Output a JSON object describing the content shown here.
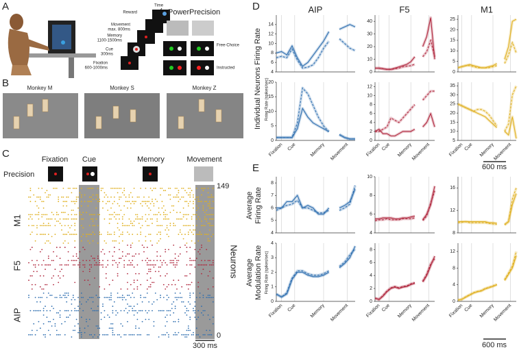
{
  "panels": {
    "a": {
      "letter": "A",
      "time": "Time",
      "reward": "Reward",
      "movement": "Movement",
      "movement_dur": "max. 800ms",
      "memory": "Memory",
      "memory_dur": "1100-1500ms",
      "cue": "Cue",
      "cue_dur": "300ms",
      "fixation": "Fixation",
      "fixation_dur": "600-1000ms",
      "power": "Power",
      "precision": "Precision",
      "free_choice": "Free-Choice",
      "instructed": "Instructed"
    },
    "b": {
      "letter": "B",
      "monkeys": [
        "Monkey M",
        "Monkey S",
        "Monkey Z"
      ]
    },
    "c": {
      "letter": "C",
      "epochs": [
        "Fixation",
        "Cue",
        "Memory",
        "Movement"
      ],
      "precision": "Precision",
      "areas": [
        "M1",
        "F5",
        "AIP"
      ],
      "top": "149",
      "bottom": "0",
      "neurons": "Neurons",
      "scale": "300 ms"
    },
    "d": {
      "letter": "D",
      "columns": [
        "AIP",
        "F5",
        "M1"
      ],
      "ylabel": "Individual Neurons Firing Rate",
      "units": "Firing Rate (spikes/sec)",
      "scale": "600 ms"
    },
    "e": {
      "letter": "E",
      "ylabel1": [
        "Average",
        "Firing Rate"
      ],
      "ylabel2": [
        "Average",
        "Modulation Rate"
      ],
      "units": "Firing Rate (spikes/sec)",
      "scale": "600 ms"
    },
    "events": [
      "Fixation",
      "Cue",
      "Memory",
      "Movement"
    ]
  },
  "chart_data": [
    {
      "type": "line",
      "ylim": [
        4,
        16
      ],
      "yticks": [
        4,
        6,
        8,
        10,
        12,
        14
      ],
      "series": [
        {
          "color": "#2f6fb0",
          "style": "solid",
          "values": [
            8,
            8.3,
            7.6,
            9.5,
            7,
            5.2,
            6,
            7.5,
            9,
            10.5,
            12.5,
            null,
            13,
            13.5,
            14,
            13.5
          ]
        },
        {
          "color": "#2f6fb0",
          "style": "dashed",
          "values": [
            7,
            7.3,
            7,
            8.8,
            6.5,
            4.8,
            5,
            5.5,
            7,
            9,
            10.5,
            null,
            11,
            10,
            9,
            8.5
          ]
        }
      ]
    },
    {
      "type": "line",
      "ylim": [
        0,
        45
      ],
      "yticks": [
        0,
        10,
        20,
        30,
        40
      ],
      "series": [
        {
          "color": "#b0283e",
          "style": "solid",
          "values": [
            3,
            3,
            2.5,
            2,
            2,
            3,
            4,
            5,
            6,
            8,
            12,
            null,
            20,
            28,
            43,
            10
          ]
        },
        {
          "color": "#b0283e",
          "style": "dashed",
          "values": [
            3,
            3,
            2.5,
            2,
            2,
            2.5,
            3,
            4,
            4.5,
            5,
            6,
            null,
            12,
            16,
            25,
            12
          ]
        }
      ]
    },
    {
      "type": "line",
      "ylim": [
        0,
        27
      ],
      "yticks": [
        0,
        5,
        10,
        15,
        20,
        25
      ],
      "series": [
        {
          "color": "#e0b020",
          "style": "solid",
          "values": [
            2,
            2.5,
            3,
            3.5,
            3,
            2.5,
            2,
            2,
            2.5,
            3,
            4,
            null,
            6,
            12,
            24,
            25
          ]
        },
        {
          "color": "#e0b020",
          "style": "dashed",
          "values": [
            2,
            2.5,
            3,
            3,
            2.5,
            2,
            2,
            2,
            2,
            2.5,
            3,
            null,
            4,
            8,
            14,
            9
          ]
        }
      ]
    },
    {
      "type": "line",
      "ylim": [
        0,
        20
      ],
      "yticks": [
        0,
        5,
        10,
        15,
        20
      ],
      "series": [
        {
          "color": "#2f6fb0",
          "style": "solid",
          "values": [
            1,
            1,
            1,
            1,
            4,
            11,
            8,
            6,
            5,
            4,
            3,
            null,
            2,
            1,
            0.5,
            0.5
          ]
        },
        {
          "color": "#2f6fb0",
          "style": "dashed",
          "values": [
            1,
            1,
            1,
            1,
            6,
            18,
            16,
            12,
            8,
            5,
            3,
            null,
            2,
            1,
            0.5,
            0.5
          ]
        }
      ]
    },
    {
      "type": "line",
      "ylim": [
        0,
        13
      ],
      "yticks": [
        0,
        2,
        4,
        6,
        8,
        10,
        12
      ],
      "series": [
        {
          "color": "#b0283e",
          "style": "solid",
          "values": [
            2,
            2.5,
            1.5,
            1.5,
            1,
            1,
            1.5,
            2,
            2,
            2,
            2.5,
            null,
            3,
            4,
            6,
            3
          ]
        },
        {
          "color": "#b0283e",
          "style": "dashed",
          "values": [
            2,
            2,
            2.5,
            3,
            5,
            4.5,
            4,
            5,
            6,
            7,
            8,
            null,
            9,
            10,
            11,
            11
          ]
        }
      ]
    },
    {
      "type": "line",
      "ylim": [
        5,
        37
      ],
      "yticks": [
        5,
        10,
        15,
        20,
        25,
        30,
        35
      ],
      "series": [
        {
          "color": "#e0b020",
          "style": "solid",
          "values": [
            25,
            24,
            23,
            22,
            21,
            20,
            19,
            18,
            16,
            14,
            12,
            null,
            10,
            8,
            18,
            6
          ]
        },
        {
          "color": "#e0b020",
          "style": "dashed",
          "values": [
            25,
            24,
            23,
            22,
            21,
            22,
            22,
            21,
            19,
            16,
            13,
            null,
            10,
            14,
            30,
            35
          ]
        }
      ]
    },
    {
      "type": "line",
      "ylim": [
        4,
        8.5
      ],
      "yticks": [
        4,
        5,
        6,
        7,
        8
      ],
      "series": [
        {
          "color": "#2f6fb0",
          "style": "solid",
          "values": [
            6,
            6,
            6.5,
            6.5,
            7,
            6,
            6.2,
            6,
            5.5,
            5.5,
            6,
            null,
            6,
            6.2,
            6.5,
            7.5
          ]
        },
        {
          "color": "#2f6fb0",
          "style": "dashed",
          "values": [
            5.8,
            6,
            6.2,
            6.3,
            6.6,
            6,
            6,
            5.8,
            5.6,
            5.6,
            5.8,
            null,
            5.8,
            6,
            6.3,
            7.8
          ]
        }
      ]
    },
    {
      "type": "line",
      "ylim": [
        4,
        10
      ],
      "yticks": [
        4,
        6,
        8,
        10
      ],
      "series": [
        {
          "color": "#b0283e",
          "style": "solid",
          "values": [
            5.5,
            5.5,
            5.6,
            5.6,
            5.6,
            5.5,
            5.5,
            5.6,
            5.6,
            5.7,
            5.8,
            null,
            5.4,
            6,
            7,
            9
          ]
        },
        {
          "color": "#b0283e",
          "style": "dashed",
          "values": [
            5.3,
            5.4,
            5.4,
            5.5,
            5.4,
            5.4,
            5.4,
            5.5,
            5.5,
            5.5,
            5.6,
            null,
            5.3,
            5.8,
            7.2,
            8.5
          ]
        }
      ]
    },
    {
      "type": "line",
      "ylim": [
        8,
        18
      ],
      "yticks": [
        8,
        12,
        16
      ],
      "series": [
        {
          "color": "#e0b020",
          "style": "solid",
          "values": [
            10,
            10,
            10,
            10,
            10,
            10,
            10,
            10,
            9.8,
            9.8,
            9.7,
            null,
            9.5,
            10,
            13,
            15
          ]
        },
        {
          "color": "#e0b020",
          "style": "dashed",
          "values": [
            9.8,
            9.9,
            10,
            9.8,
            9.8,
            9.8,
            9.8,
            9.8,
            9.7,
            9.6,
            9.5,
            null,
            9.4,
            10,
            14,
            16
          ]
        }
      ]
    },
    {
      "type": "line",
      "ylim": [
        0,
        4
      ],
      "yticks": [
        0,
        1,
        2,
        3,
        4
      ],
      "series": [
        {
          "color": "#2f6fb0",
          "style": "solid",
          "values": [
            0.5,
            0.3,
            0.5,
            1.5,
            2,
            2,
            1.8,
            1.7,
            1.7,
            1.8,
            2,
            null,
            2.3,
            2.6,
            3,
            3.8
          ]
        },
        {
          "color": "#2f6fb0",
          "style": "dashed",
          "values": [
            0.5,
            0.3,
            0.6,
            1.6,
            2.1,
            2.1,
            1.9,
            1.8,
            1.8,
            1.9,
            2.1,
            null,
            2.4,
            2.7,
            3.2,
            3.6
          ]
        }
      ]
    },
    {
      "type": "line",
      "ylim": [
        0,
        9
      ],
      "yticks": [
        0,
        2,
        4,
        6,
        8
      ],
      "series": [
        {
          "color": "#b0283e",
          "style": "solid",
          "values": [
            0.5,
            0.3,
            0.8,
            1.5,
            2,
            2.2,
            2,
            2.2,
            2.3,
            2.6,
            2.8,
            null,
            3,
            4,
            5.5,
            7
          ]
        },
        {
          "color": "#b0283e",
          "style": "dashed",
          "values": [
            0.5,
            0.3,
            0.9,
            1.6,
            2.1,
            2.3,
            2.1,
            2.3,
            2.4,
            2.7,
            2.9,
            null,
            3.1,
            4.2,
            5.8,
            6.6
          ]
        }
      ]
    },
    {
      "type": "line",
      "ylim": [
        0,
        14
      ],
      "yticks": [
        0,
        4,
        8,
        12
      ],
      "series": [
        {
          "color": "#e0b020",
          "style": "solid",
          "values": [
            0.3,
            0.5,
            1,
            1.5,
            2,
            2.3,
            2.5,
            3,
            3.3,
            3.6,
            4,
            null,
            5,
            6.5,
            8,
            11
          ]
        },
        {
          "color": "#e0b020",
          "style": "dashed",
          "values": [
            0.3,
            0.5,
            1.1,
            1.6,
            2.1,
            2.4,
            2.6,
            3.1,
            3.4,
            3.7,
            4.1,
            null,
            5.2,
            6.8,
            8.5,
            12
          ]
        }
      ]
    }
  ]
}
